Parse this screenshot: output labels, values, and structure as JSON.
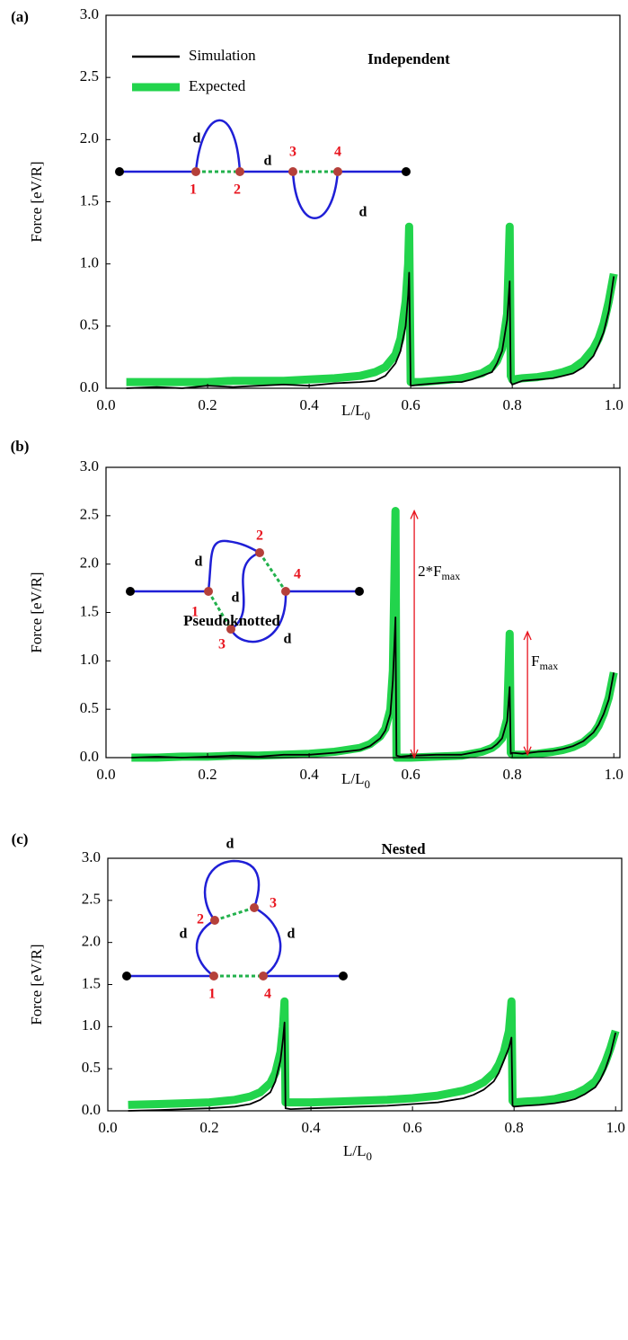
{
  "chart_data": [
    {
      "type": "line",
      "panel_label": "(a)",
      "ylabel": "Force [eV/R]",
      "xlabel": "L/L",
      "xlabel_sub": "0",
      "legend": "upper left",
      "xlim": [
        0,
        1.012
      ],
      "ylim": [
        0,
        3
      ],
      "xticks": [
        {
          "value": 0,
          "label": "0.0"
        },
        0.2,
        0.4,
        0.6,
        0.8,
        {
          "value": 1,
          "label": "1.0"
        }
      ],
      "yticks": [
        {
          "value": 0,
          "label": "0.0"
        },
        0.5,
        {
          "value": 1,
          "label": "1.0"
        },
        1.5,
        {
          "value": 2,
          "label": "2.0"
        },
        2.5,
        {
          "value": 3,
          "label": "3.0"
        }
      ],
      "inset": {
        "title": "Independent",
        "node_labels": [
          "1",
          "2",
          "3",
          "4"
        ],
        "segment_label": "d"
      },
      "x": [
        0.04,
        0.1,
        0.15,
        0.2,
        0.25,
        0.3,
        0.35,
        0.4,
        0.45,
        0.5,
        0.53,
        0.55,
        0.57,
        0.58,
        0.59,
        0.595,
        0.597,
        0.6,
        0.62,
        0.65,
        0.68,
        0.7,
        0.72,
        0.74,
        0.76,
        0.77,
        0.78,
        0.79,
        0.795,
        0.797,
        0.8,
        0.82,
        0.85,
        0.88,
        0.9,
        0.92,
        0.94,
        0.96,
        0.97,
        0.98,
        0.99,
        1.0
      ],
      "series": [
        {
          "name": "Expected",
          "color": "#22d44c",
          "values": [
            0.05,
            0.05,
            0.05,
            0.05,
            0.06,
            0.06,
            0.06,
            0.07,
            0.08,
            0.1,
            0.13,
            0.17,
            0.27,
            0.4,
            0.7,
            1.0,
            1.3,
            0.05,
            0.05,
            0.06,
            0.07,
            0.08,
            0.1,
            0.12,
            0.17,
            0.22,
            0.32,
            0.6,
            1.3,
            0.1,
            0.07,
            0.08,
            0.09,
            0.11,
            0.13,
            0.16,
            0.22,
            0.32,
            0.4,
            0.52,
            0.7,
            0.92
          ]
        },
        {
          "name": "Simulation",
          "color": "#000000",
          "values": [
            0.0,
            0.01,
            0.0,
            0.02,
            0.01,
            0.02,
            0.03,
            0.02,
            0.04,
            0.05,
            0.06,
            0.1,
            0.2,
            0.3,
            0.5,
            0.75,
            0.93,
            0.02,
            0.03,
            0.04,
            0.05,
            0.05,
            0.07,
            0.1,
            0.13,
            0.2,
            0.3,
            0.55,
            0.86,
            0.05,
            0.03,
            0.06,
            0.07,
            0.08,
            0.1,
            0.12,
            0.17,
            0.26,
            0.35,
            0.45,
            0.62,
            0.9
          ]
        }
      ]
    },
    {
      "type": "line",
      "panel_label": "(b)",
      "ylabel": "Force [eV/R]",
      "xlabel": "L/L",
      "xlabel_sub": "0",
      "xlim": [
        0,
        1.012
      ],
      "ylim": [
        0,
        3
      ],
      "xticks": [
        {
          "value": 0,
          "label": "0.0"
        },
        0.2,
        0.4,
        0.6,
        0.8,
        {
          "value": 1,
          "label": "1.0"
        }
      ],
      "yticks": [
        {
          "value": 0,
          "label": "0.0"
        },
        0.5,
        {
          "value": 1,
          "label": "1.0"
        },
        1.5,
        {
          "value": 2,
          "label": "2.0"
        },
        2.5,
        {
          "value": 3,
          "label": "3.0"
        }
      ],
      "inset": {
        "title": "Pseudoknotted",
        "node_labels": [
          "1",
          "2",
          "3",
          "4"
        ],
        "segment_label": "d"
      },
      "annotations": [
        {
          "text": "2*F",
          "sub": "max",
          "x": 0.607,
          "y0": 0,
          "y1": 2.55
        },
        {
          "text": "F",
          "sub": "max",
          "x": 0.83,
          "y0": 0.03,
          "y1": 1.3
        }
      ],
      "x": [
        0.05,
        0.1,
        0.15,
        0.2,
        0.25,
        0.3,
        0.35,
        0.4,
        0.45,
        0.5,
        0.52,
        0.54,
        0.55,
        0.56,
        0.565,
        0.57,
        0.572,
        0.58,
        0.6,
        0.65,
        0.7,
        0.72,
        0.74,
        0.76,
        0.77,
        0.78,
        0.79,
        0.795,
        0.797,
        0.8,
        0.82,
        0.85,
        0.88,
        0.9,
        0.92,
        0.94,
        0.96,
        0.97,
        0.98,
        0.99,
        1.0
      ],
      "series": [
        {
          "color": "#22d44c",
          "values": [
            0.0,
            0.0,
            0.01,
            0.01,
            0.02,
            0.02,
            0.03,
            0.04,
            0.06,
            0.1,
            0.14,
            0.22,
            0.3,
            0.5,
            0.9,
            2.55,
            0.0,
            0.0,
            0.0,
            0.01,
            0.02,
            0.04,
            0.06,
            0.1,
            0.14,
            0.2,
            0.4,
            1.28,
            0.05,
            0.03,
            0.03,
            0.04,
            0.06,
            0.08,
            0.11,
            0.16,
            0.25,
            0.33,
            0.45,
            0.62,
            0.88
          ]
        },
        {
          "color": "#000000",
          "values": [
            0.0,
            0.01,
            0.0,
            0.01,
            0.02,
            0.01,
            0.03,
            0.03,
            0.05,
            0.08,
            0.12,
            0.2,
            0.28,
            0.45,
            0.8,
            1.45,
            0.02,
            0.01,
            0.02,
            0.03,
            0.03,
            0.05,
            0.07,
            0.1,
            0.14,
            0.2,
            0.38,
            0.73,
            0.04,
            0.05,
            0.04,
            0.06,
            0.07,
            0.09,
            0.12,
            0.17,
            0.26,
            0.34,
            0.45,
            0.6,
            0.88
          ]
        }
      ]
    },
    {
      "type": "line",
      "panel_label": "(c)",
      "ylabel": "Force [eV/R]",
      "xlabel": "L/L",
      "xlabel_sub": "0",
      "xlim": [
        0,
        1.012
      ],
      "ylim": [
        0,
        3
      ],
      "xticks": [
        {
          "value": 0,
          "label": "0.0"
        },
        0.2,
        0.4,
        0.6,
        0.8,
        {
          "value": 1,
          "label": "1.0"
        }
      ],
      "yticks": [
        {
          "value": 0,
          "label": "0.0"
        },
        0.5,
        {
          "value": 1,
          "label": "1.0"
        },
        1.5,
        {
          "value": 2,
          "label": "2.0"
        },
        2.5,
        {
          "value": 3,
          "label": "3.0"
        }
      ],
      "inset": {
        "title": "Nested",
        "node_labels": [
          "1",
          "2",
          "3",
          "4"
        ],
        "segment_label": "d"
      },
      "x": [
        0.04,
        0.1,
        0.15,
        0.2,
        0.25,
        0.28,
        0.3,
        0.32,
        0.33,
        0.34,
        0.345,
        0.348,
        0.35,
        0.36,
        0.4,
        0.45,
        0.5,
        0.55,
        0.6,
        0.65,
        0.7,
        0.72,
        0.74,
        0.76,
        0.77,
        0.78,
        0.79,
        0.795,
        0.797,
        0.8,
        0.82,
        0.85,
        0.88,
        0.9,
        0.92,
        0.94,
        0.96,
        0.97,
        0.98,
        0.99,
        1.0
      ],
      "series": [
        {
          "color": "#22d44c",
          "values": [
            0.07,
            0.08,
            0.09,
            0.1,
            0.13,
            0.17,
            0.22,
            0.33,
            0.45,
            0.7,
            1.0,
            1.3,
            0.1,
            0.1,
            0.1,
            0.11,
            0.12,
            0.13,
            0.15,
            0.18,
            0.24,
            0.28,
            0.34,
            0.45,
            0.55,
            0.7,
            0.95,
            1.3,
            0.12,
            0.1,
            0.11,
            0.12,
            0.14,
            0.17,
            0.2,
            0.26,
            0.35,
            0.45,
            0.58,
            0.75,
            0.95
          ]
        },
        {
          "color": "#000000",
          "values": [
            0.0,
            0.01,
            0.02,
            0.03,
            0.05,
            0.08,
            0.13,
            0.22,
            0.35,
            0.6,
            0.85,
            1.05,
            0.03,
            0.02,
            0.03,
            0.04,
            0.05,
            0.06,
            0.08,
            0.1,
            0.15,
            0.19,
            0.25,
            0.35,
            0.45,
            0.6,
            0.75,
            0.87,
            0.06,
            0.05,
            0.06,
            0.07,
            0.09,
            0.11,
            0.14,
            0.2,
            0.28,
            0.37,
            0.5,
            0.68,
            0.93
          ]
        }
      ]
    }
  ]
}
